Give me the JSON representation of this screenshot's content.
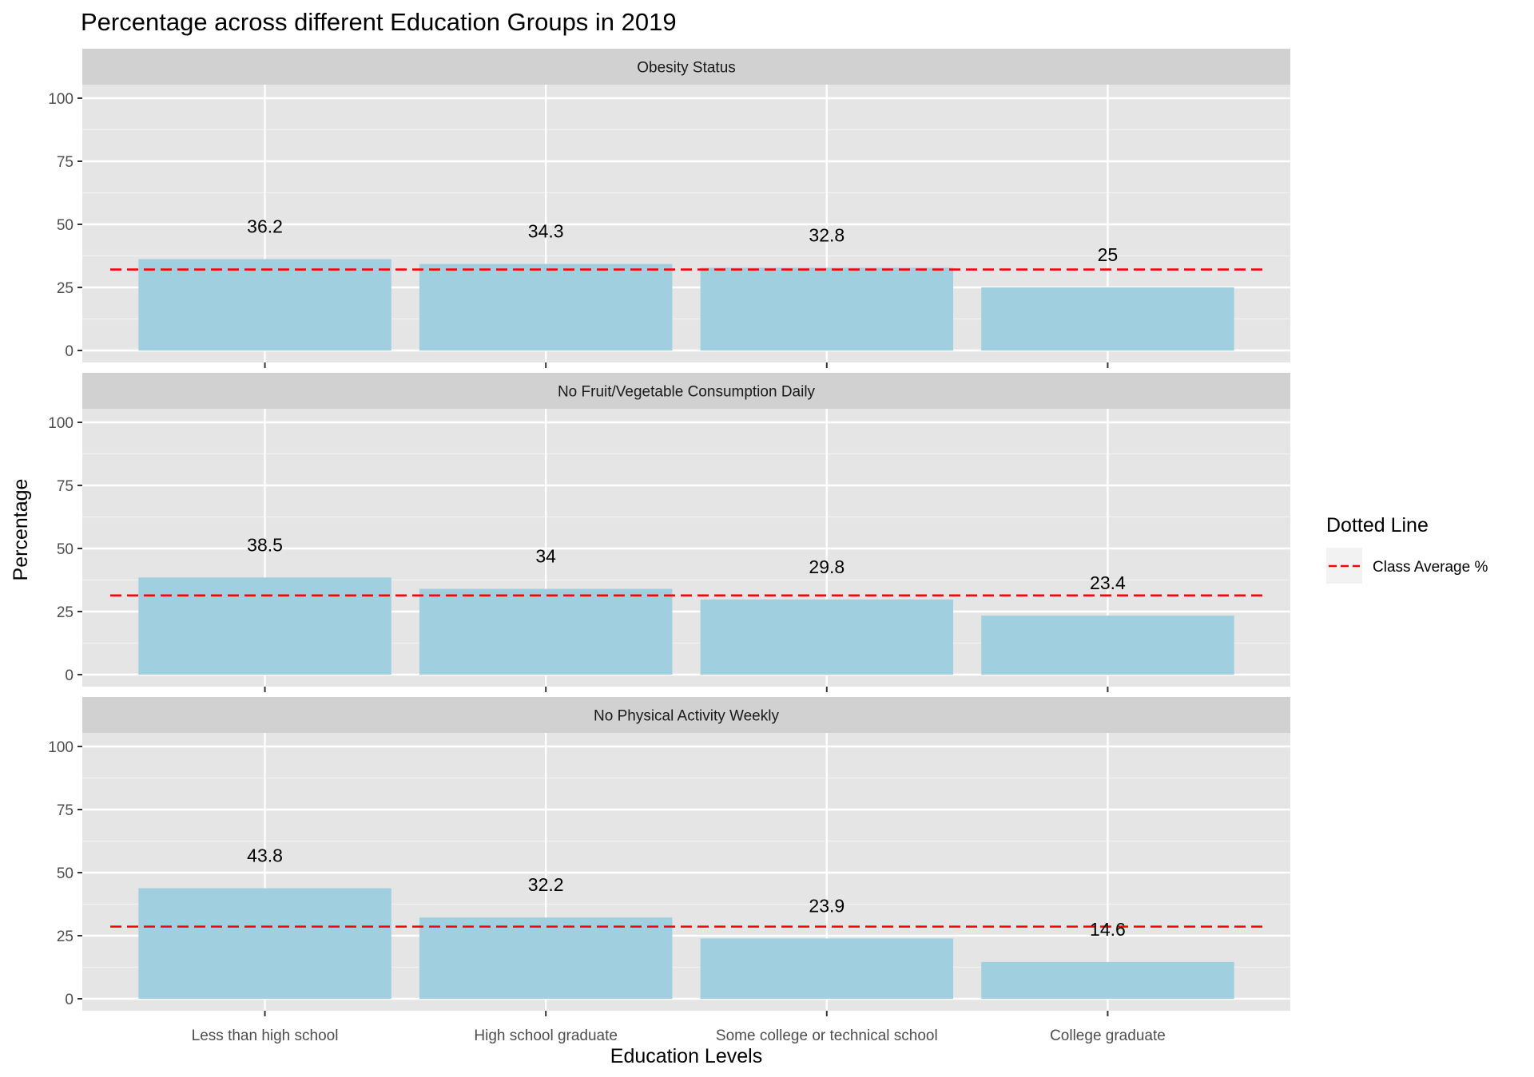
{
  "chart_data": {
    "type": "bar",
    "title": "Percentage across different Education Groups in 2019",
    "xlabel": "Education Levels",
    "ylabel": "Percentage",
    "ylim": [
      0,
      110
    ],
    "yticks": [
      0,
      25,
      50,
      75,
      100
    ],
    "ytick_labels": [
      "0",
      "25",
      "50",
      "75",
      "100"
    ],
    "grid": true,
    "categories": [
      "Less than high school",
      "High school graduate",
      "Some college or technical school",
      "College graduate"
    ],
    "facets": [
      {
        "name": "Obesity Status",
        "values": [
          36.2,
          34.3,
          32.8,
          25
        ],
        "labels": [
          "36.2",
          "34.3",
          "32.8",
          "25"
        ],
        "average": 32.1
      },
      {
        "name": "No Fruit/Vegetable Consumption Daily",
        "values": [
          38.5,
          34,
          29.8,
          23.4
        ],
        "labels": [
          "38.5",
          "34",
          "29.8",
          "23.4"
        ],
        "average": 31.4
      },
      {
        "name": "No Physical Activity Weekly",
        "values": [
          43.8,
          32.2,
          23.9,
          14.6
        ],
        "labels": [
          "43.8",
          "32.2",
          "23.9",
          "14.6"
        ],
        "average": 28.6
      }
    ],
    "legend": {
      "title": "Dotted Line",
      "entries": [
        "Class Average %"
      ],
      "position": "right"
    },
    "colors": {
      "bar": "#a0cfe0",
      "average_line": "#ff0000",
      "panel_bg": "#e5e5e5",
      "strip_bg": "#d1d1d1",
      "grid": "#ffffff"
    }
  }
}
